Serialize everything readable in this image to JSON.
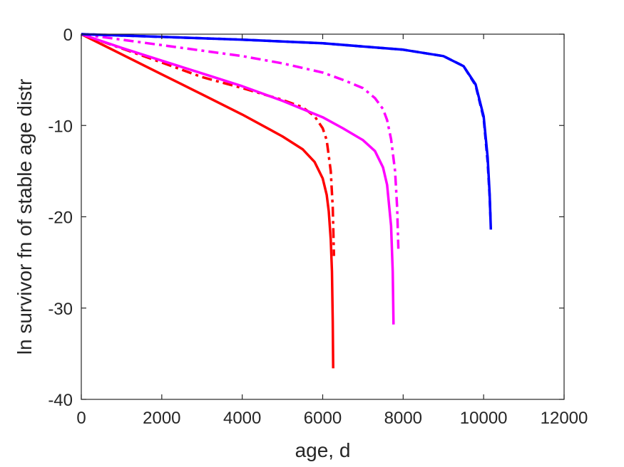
{
  "chart_data": {
    "type": "line",
    "title": "",
    "xlabel": "age, d",
    "ylabel": "ln survivor fn of stable age distr",
    "xlim": [
      0,
      12000
    ],
    "ylim": [
      -40,
      0
    ],
    "xticks": [
      0,
      2000,
      4000,
      6000,
      8000,
      10000,
      12000
    ],
    "yticks": [
      0,
      -10,
      -20,
      -30,
      -40
    ],
    "xtick_labels": [
      "0",
      "2000",
      "4000",
      "6000",
      "8000",
      "10000",
      "12000"
    ],
    "ytick_labels": [
      "0",
      "-10",
      "-20",
      "-30",
      "-40"
    ],
    "grid": false,
    "legend": "none",
    "series": [
      {
        "color": "#ff0000",
        "style": "solid",
        "x": [
          0,
          1000,
          2000,
          3000,
          4000,
          5000,
          5500,
          5800,
          6000,
          6100,
          6150,
          6200,
          6230,
          6250,
          6260
        ],
        "y": [
          0,
          -2.2,
          -4.4,
          -6.6,
          -8.8,
          -11.2,
          -12.6,
          -14.0,
          -15.8,
          -17.6,
          -19.4,
          -22.5,
          -26.0,
          -31.5,
          -36.6
        ]
      },
      {
        "color": "#ff0000",
        "style": "dashdot",
        "x": [
          0,
          1000,
          2000,
          3000,
          4000,
          5000,
          5500,
          5800,
          6000,
          6100,
          6200,
          6250,
          6280
        ],
        "y": [
          0,
          -1.55,
          -3.1,
          -4.7,
          -5.9,
          -7.2,
          -8.0,
          -9.0,
          -10.3,
          -11.6,
          -15.0,
          -19.0,
          -24.3
        ]
      },
      {
        "color": "#ff00ff",
        "style": "solid",
        "x": [
          0,
          1000,
          2000,
          3000,
          4000,
          5000,
          6000,
          6500,
          7000,
          7300,
          7500,
          7600,
          7700,
          7740,
          7760
        ],
        "y": [
          0,
          -1.5,
          -2.9,
          -4.3,
          -5.7,
          -7.3,
          -9.1,
          -10.3,
          -11.6,
          -12.8,
          -14.6,
          -16.5,
          -21.0,
          -26.0,
          -31.8
        ]
      },
      {
        "color": "#ff00ff",
        "style": "dashdot",
        "x": [
          0,
          1000,
          2000,
          3000,
          4000,
          5000,
          6000,
          6500,
          7000,
          7300,
          7500,
          7600,
          7700,
          7800,
          7850,
          7880
        ],
        "y": [
          0,
          -0.6,
          -1.2,
          -1.8,
          -2.4,
          -3.2,
          -4.2,
          -5.0,
          -5.9,
          -7.0,
          -8.2,
          -9.4,
          -11.5,
          -15.0,
          -19.0,
          -23.5
        ]
      },
      {
        "color": "#0000ff",
        "style": "solid",
        "x": [
          0,
          2000,
          4000,
          6000,
          8000,
          9000,
          9500,
          9800,
          10000,
          10100,
          10150,
          10180
        ],
        "y": [
          0,
          -0.3,
          -0.6,
          -1.0,
          -1.7,
          -2.4,
          -3.5,
          -5.5,
          -9.0,
          -13.5,
          -17.5,
          -21.4
        ]
      },
      {
        "color": "#0000ff",
        "style": "dashed",
        "x": [
          0,
          2000,
          4000,
          6000,
          8000,
          9000,
          9500,
          9800,
          10000,
          10100,
          10150,
          10170
        ],
        "y": [
          0,
          -0.3,
          -0.6,
          -1.0,
          -1.7,
          -2.4,
          -3.5,
          -5.6,
          -9.2,
          -14.0,
          -17.8,
          -20.2
        ]
      }
    ]
  }
}
